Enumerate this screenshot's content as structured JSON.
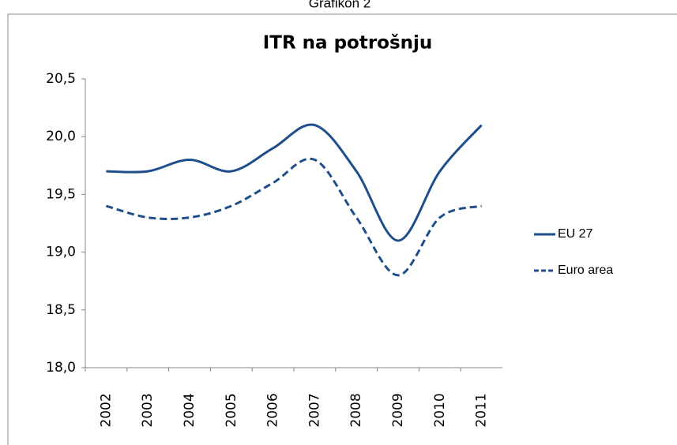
{
  "caption": "Grafikon 2",
  "chart_data": {
    "type": "line",
    "title": "ITR na potrošnju",
    "categories": [
      "2002",
      "2003",
      "2004",
      "2005",
      "2006",
      "2007",
      "2008",
      "2009",
      "2010",
      "2011"
    ],
    "series": [
      {
        "name": "EU 27",
        "color": "#1f4e8c",
        "dash": "solid",
        "values": [
          19.7,
          19.7,
          19.8,
          19.7,
          19.9,
          20.1,
          19.7,
          19.1,
          19.7,
          20.1
        ]
      },
      {
        "name": "Euro area",
        "color": "#1f4e8c",
        "dash": "dashed",
        "values": [
          19.4,
          19.3,
          19.3,
          19.4,
          19.6,
          19.8,
          19.3,
          18.8,
          19.3,
          19.4
        ]
      }
    ],
    "ylim": [
      18.0,
      20.5
    ],
    "yticks": [
      {
        "value": 18.0,
        "label": "18,0"
      },
      {
        "value": 18.5,
        "label": "18,5"
      },
      {
        "value": 19.0,
        "label": "19,0"
      },
      {
        "value": 19.5,
        "label": "19,5"
      },
      {
        "value": 20.0,
        "label": "20,0"
      },
      {
        "value": 20.5,
        "label": "20,5"
      }
    ],
    "smooth": true,
    "legend": "right"
  }
}
